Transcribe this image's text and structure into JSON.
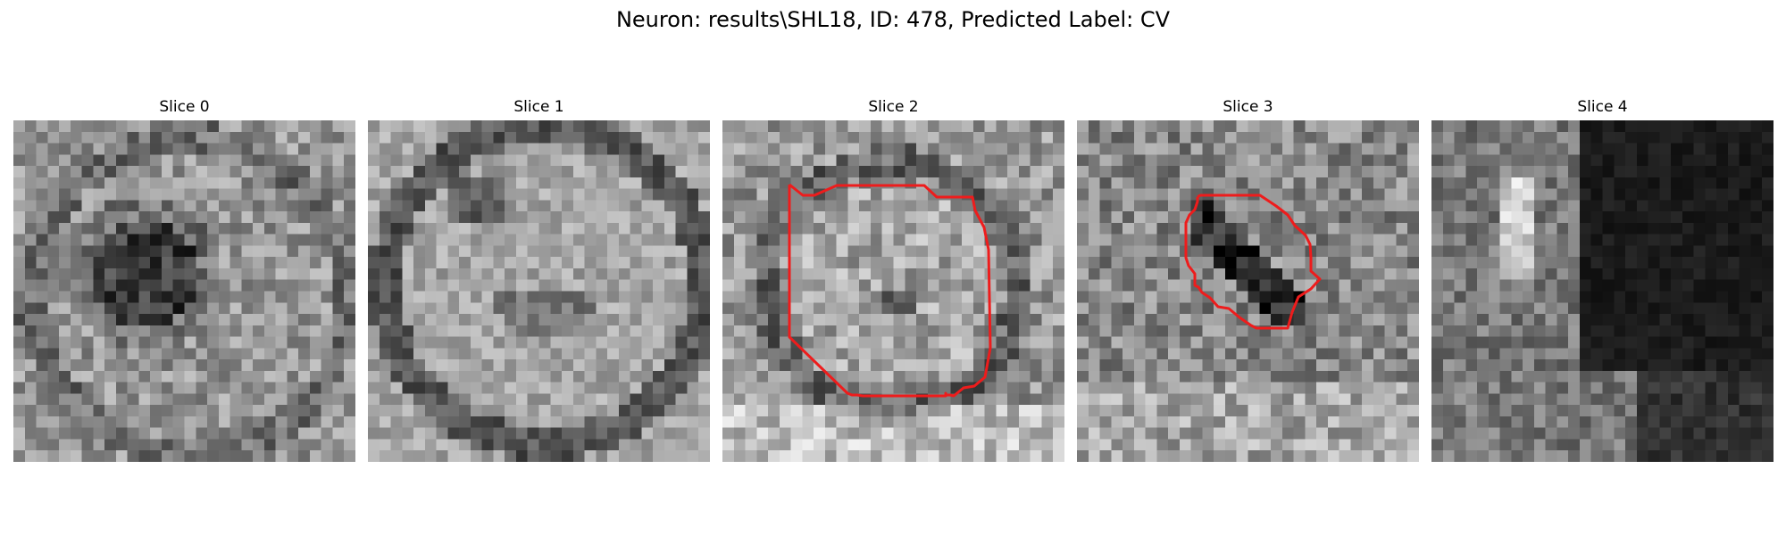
{
  "figure": {
    "title": "Neuron: results\\SHL18, ID: 478, Predicted Label: CV"
  },
  "panels": [
    {
      "title": "Slice 0",
      "has_contour": false,
      "pattern": "dark-blob-center"
    },
    {
      "title": "Slice 1",
      "has_contour": false,
      "pattern": "bright-ring"
    },
    {
      "title": "Slice 2",
      "has_contour": true,
      "pattern": "round-cell"
    },
    {
      "title": "Slice 3",
      "has_contour": true,
      "pattern": "dark-diagonal"
    },
    {
      "title": "Slice 4",
      "has_contour": false,
      "pattern": "dark-right-region"
    }
  ],
  "colors": {
    "contour": "#ee1c1c",
    "background": "#ffffff"
  },
  "grid_size": 30
}
